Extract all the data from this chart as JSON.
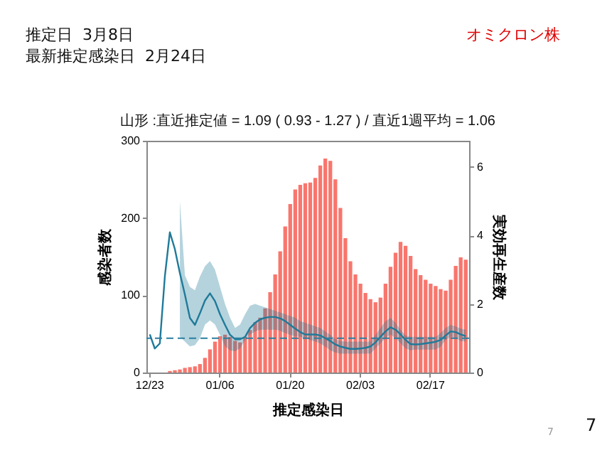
{
  "chart_data": {
    "type": "bar",
    "title": "山形 :直近推定値 = 1.09 ( 0.93 - 1.27 ) / 直近1週平均 = 1.06",
    "xlabel": "推定感染日",
    "ylabel": "感染者数",
    "y2label": "実効再生産数",
    "annotations": [
      "推定日  3月8日",
      "最新推定感染日  2月24日",
      "オミクロン株",
      "7",
      "7"
    ],
    "categories": [
      "12/23",
      null,
      null,
      null,
      null,
      null,
      null,
      null,
      null,
      null,
      null,
      null,
      null,
      null,
      "01/06",
      null,
      null,
      null,
      null,
      null,
      null,
      null,
      null,
      null,
      null,
      null,
      null,
      null,
      "01/20",
      null,
      null,
      null,
      null,
      null,
      null,
      null,
      null,
      null,
      null,
      null,
      null,
      null,
      "02/03",
      null,
      null,
      null,
      null,
      null,
      null,
      null,
      null,
      null,
      null,
      null,
      null,
      null,
      "02/17",
      null,
      null,
      null,
      null,
      null,
      null,
      null
    ],
    "ylim": [
      0,
      300
    ],
    "yticks": [
      0,
      100,
      200,
      300
    ],
    "y2lim": [
      0,
      6.76
    ],
    "y2ticks": [
      0,
      2,
      4,
      6
    ],
    "series": [
      {
        "color": "#f8766d",
        "values": [
          0,
          0,
          0,
          0,
          2,
          3,
          4,
          6,
          7,
          8,
          11,
          19,
          30,
          40,
          47,
          49,
          46,
          41,
          39,
          46,
          55,
          65,
          71,
          83,
          104,
          127,
          157,
          189,
          218,
          237,
          243,
          245,
          246,
          252,
          268,
          277,
          274,
          250,
          213,
          174,
          144,
          127,
          115,
          103,
          95,
          91,
          97,
          115,
          137,
          155,
          169,
          164,
          151,
          134,
          126,
          120,
          115,
          112,
          108,
          106,
          120,
          138,
          149,
          146
        ]
      },
      {
        "type": "line",
        "axis": "y2",
        "color": "#1f7a99",
        "values": [
          1.11,
          0.7,
          0.85,
          2.8,
          4.09,
          3.6,
          2.9,
          2.27,
          1.59,
          1.39,
          1.73,
          2.1,
          2.31,
          2.08,
          1.7,
          1.39,
          1.1,
          0.97,
          0.97,
          1.04,
          1.3,
          1.45,
          1.55,
          1.6,
          1.62,
          1.62,
          1.58,
          1.5,
          1.39,
          1.28,
          1.18,
          1.11,
          1.11,
          1.11,
          1.08,
          1.0,
          0.92,
          0.82,
          0.76,
          0.72,
          0.69,
          0.69,
          0.7,
          0.72,
          0.76,
          0.88,
          1.04,
          1.2,
          1.32,
          1.25,
          1.11,
          0.95,
          0.83,
          0.82,
          0.83,
          0.85,
          0.87,
          0.9,
          0.95,
          1.08,
          1.2,
          1.18,
          1.11,
          1.06
        ],
        "lower": [
          null,
          null,
          null,
          null,
          null,
          null,
          1.04,
          0.9,
          0.76,
          0.8,
          1.0,
          1.4,
          1.52,
          1.4,
          1.1,
          0.76,
          0.65,
          0.62,
          0.7,
          0.95,
          1.11,
          1.2,
          1.25,
          1.25,
          1.25,
          1.25,
          1.22,
          1.15,
          1.1,
          1.05,
          1.04,
          1.0,
          0.95,
          0.9,
          0.85,
          0.75,
          0.65,
          0.58,
          0.55,
          0.55,
          0.55,
          0.55,
          0.55,
          0.55,
          0.55,
          0.7,
          0.85,
          1.0,
          1.11,
          1.0,
          0.85,
          0.7,
          0.65,
          0.67,
          0.67,
          0.67,
          0.67,
          0.67,
          0.75,
          0.95,
          1.04,
          1.0,
          0.92,
          0.9
        ],
        "upper": [
          null,
          null,
          null,
          null,
          null,
          null,
          5.0,
          2.84,
          2.5,
          2.4,
          2.8,
          3.1,
          3.25,
          3.0,
          2.5,
          2.0,
          1.6,
          1.3,
          1.4,
          1.7,
          1.95,
          2.0,
          1.95,
          1.9,
          1.85,
          1.8,
          1.75,
          1.7,
          1.65,
          1.6,
          1.5,
          1.45,
          1.4,
          1.35,
          1.3,
          1.2,
          1.1,
          0.98,
          0.92,
          0.9,
          0.9,
          0.9,
          0.9,
          0.9,
          0.9,
          1.1,
          1.3,
          1.5,
          1.59,
          1.45,
          1.25,
          1.08,
          1.04,
          1.04,
          1.04,
          1.04,
          1.04,
          1.04,
          1.15,
          1.3,
          1.39,
          1.35,
          1.28,
          1.25
        ]
      }
    ],
    "ref_lines": [
      {
        "axis": "y2",
        "value": 1,
        "line_style": "dashed",
        "color": "#2a7fa0"
      }
    ]
  }
}
